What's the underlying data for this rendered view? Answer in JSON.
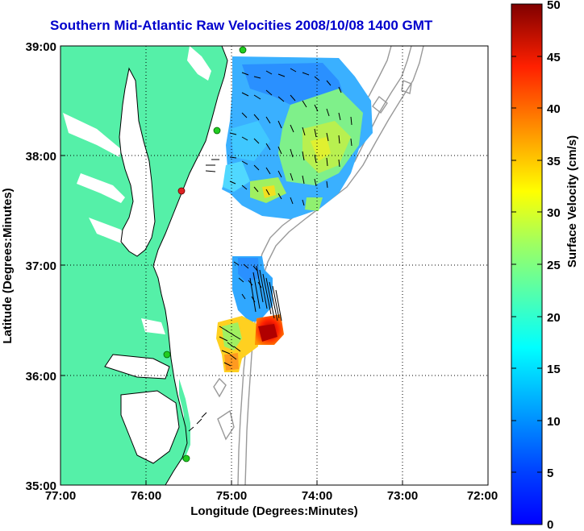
{
  "title": "Southern Mid-Atlantic Raw Velocities 2008/10/08 1400 GMT",
  "map": {
    "xlabel": "Longitude (Degrees:Minutes)",
    "ylabel": "Latitude (Degrees:Minutes)",
    "x_ticks": [
      "77:00",
      "76:00",
      "75:00",
      "74:00",
      "73:00",
      "72:00"
    ],
    "y_ticks": [
      "39:00",
      "38:00",
      "37:00",
      "36:00",
      "35:00"
    ],
    "lon_range": [
      -77,
      -72
    ],
    "lat_range": [
      35,
      39
    ],
    "land_color": "#55f0a8",
    "water_color": "#ffffff",
    "grid": "dotted"
  },
  "colorbar": {
    "label": "Surface Velocity (cm/s)",
    "ticks": [
      "0",
      "5",
      "10",
      "15",
      "20",
      "25",
      "30",
      "35",
      "40",
      "45",
      "50"
    ],
    "range": [
      0,
      50
    ],
    "colormap": "jet"
  },
  "stations": {
    "green_color": "#22cc22",
    "red_color": "#dd2222"
  }
}
